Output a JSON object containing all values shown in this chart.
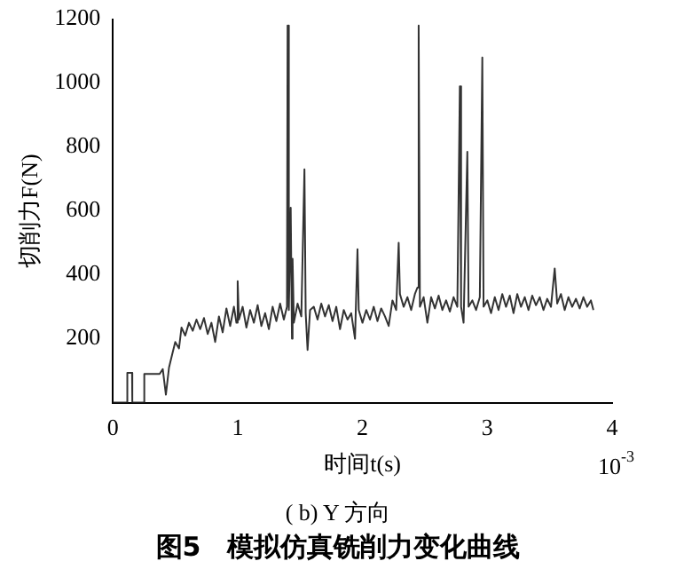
{
  "chart_data": {
    "type": "line",
    "title": "图5　模拟仿真铣削力变化曲线",
    "subtitle": "( b) Y 方向",
    "xlabel": "时间t(s)",
    "ylabel": "切削力F(N)",
    "annotations": [
      "10$^{-3}$"
    ],
    "xlim": [
      0,
      4
    ],
    "xticks": [
      0,
      1,
      2,
      3,
      4
    ],
    "ylim": [
      0,
      1200
    ],
    "yticks": [
      200,
      400,
      600,
      800,
      1000,
      1200
    ],
    "marker": "none",
    "line_style": "solid",
    "series": [
      {
        "color": "#333333",
        "x": [
          0,
          0.114,
          0.116,
          0.154,
          0.156,
          0.25,
          0.252,
          0.375,
          0.4,
          0.425,
          0.45,
          0.475,
          0.5,
          0.53,
          0.55,
          0.58,
          0.61,
          0.64,
          0.67,
          0.7,
          0.73,
          0.76,
          0.79,
          0.82,
          0.85,
          0.88,
          0.91,
          0.94,
          0.97,
          0.99,
          1.0,
          1.01,
          1.04,
          1.07,
          1.1,
          1.13,
          1.16,
          1.19,
          1.22,
          1.25,
          1.28,
          1.31,
          1.34,
          1.37,
          1.395,
          1.4,
          1.41,
          1.425,
          1.435,
          1.44,
          1.45,
          1.48,
          1.51,
          1.535,
          1.545,
          1.56,
          1.58,
          1.61,
          1.64,
          1.67,
          1.7,
          1.73,
          1.76,
          1.79,
          1.82,
          1.85,
          1.88,
          1.91,
          1.94,
          1.96,
          1.97,
          2.0,
          2.03,
          2.06,
          2.09,
          2.12,
          2.15,
          2.18,
          2.21,
          2.24,
          2.27,
          2.29,
          2.3,
          2.33,
          2.36,
          2.39,
          2.42,
          2.44,
          2.45,
          2.46,
          2.49,
          2.52,
          2.55,
          2.58,
          2.61,
          2.64,
          2.67,
          2.7,
          2.73,
          2.76,
          2.78,
          2.79,
          2.81,
          2.84,
          2.85,
          2.88,
          2.91,
          2.94,
          2.96,
          2.97,
          3.0,
          3.03,
          3.06,
          3.09,
          3.12,
          3.15,
          3.18,
          3.21,
          3.24,
          3.27,
          3.3,
          3.33,
          3.36,
          3.39,
          3.42,
          3.45,
          3.48,
          3.51,
          3.54,
          3.56,
          3.59,
          3.62,
          3.65,
          3.68,
          3.71,
          3.74,
          3.77,
          3.8,
          3.83,
          3.85
        ],
        "values": [
          0,
          0,
          93,
          93,
          0,
          0,
          90,
          90,
          105,
          25,
          110,
          150,
          190,
          170,
          235,
          210,
          250,
          225,
          260,
          230,
          265,
          215,
          250,
          190,
          270,
          220,
          295,
          240,
          300,
          250,
          380,
          260,
          300,
          235,
          290,
          250,
          305,
          240,
          280,
          230,
          300,
          255,
          310,
          260,
          300,
          1180,
          290,
          610,
          200,
          450,
          250,
          310,
          270,
          730,
          280,
          165,
          290,
          300,
          260,
          310,
          270,
          305,
          255,
          300,
          230,
          290,
          260,
          280,
          200,
          480,
          290,
          250,
          290,
          260,
          300,
          255,
          295,
          270,
          240,
          320,
          290,
          500,
          340,
          300,
          330,
          290,
          340,
          360,
          1180,
          300,
          330,
          250,
          330,
          295,
          335,
          290,
          320,
          285,
          330,
          300,
          990,
          300,
          250,
          785,
          300,
          320,
          290,
          330,
          1080,
          300,
          320,
          280,
          330,
          290,
          340,
          300,
          335,
          280,
          340,
          300,
          330,
          290,
          335,
          305,
          330,
          290,
          325,
          300,
          420,
          310,
          340,
          290,
          330,
          300,
          325,
          295,
          330,
          300,
          320,
          290
        ]
      }
    ]
  }
}
